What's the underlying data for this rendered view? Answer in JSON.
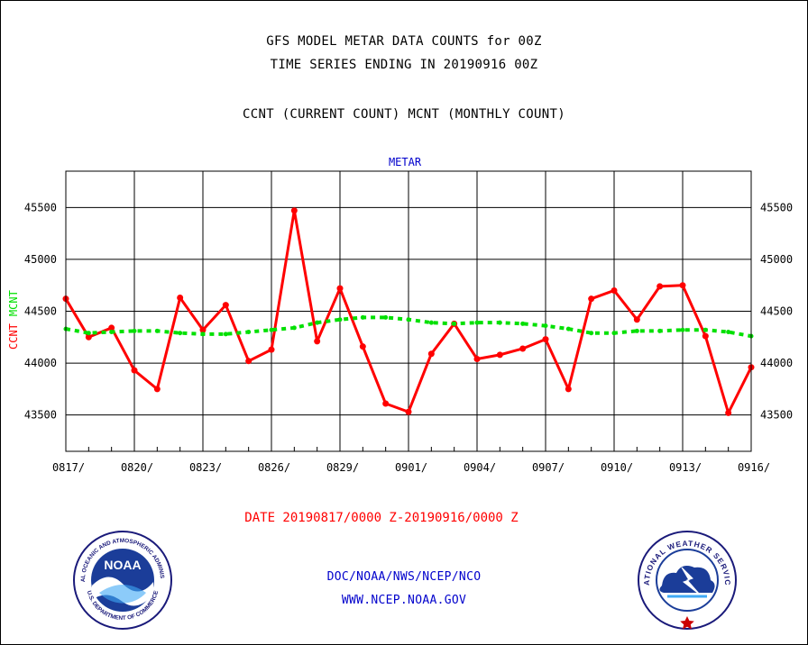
{
  "header": {
    "line1": "GFS MODEL METAR DATA COUNTS for 00Z",
    "line2": "TIME SERIES ENDING IN 20190916 00Z",
    "line3": "CCNT (CURRENT COUNT) MCNT (MONTHLY COUNT)"
  },
  "chart_data": {
    "type": "line",
    "title": "METAR",
    "ylabel_primary": "CCNT",
    "ylabel_secondary": "MCNT",
    "xlabel": "DATE 20190817/0000 Z-20190916/0000 Z",
    "ylim": [
      43150,
      45850
    ],
    "yticks": [
      43500,
      44000,
      44500,
      45000,
      45500
    ],
    "ytick_labels": [
      "43500",
      "44000",
      "44500",
      "45000",
      "45500"
    ],
    "xtick_labels": [
      "0817/",
      "0820/",
      "0823/",
      "0826/",
      "0829/",
      "0901/",
      "0904/",
      "0907/",
      "0910/",
      "0913/",
      "0916/"
    ],
    "x": [
      "0817",
      "0818",
      "0819",
      "0820",
      "0821",
      "0822",
      "0823",
      "0824",
      "0825",
      "0826",
      "0827",
      "0828",
      "0829",
      "0830",
      "0831",
      "0901",
      "0902",
      "0903",
      "0904",
      "0905",
      "0906",
      "0907",
      "0908",
      "0909",
      "0910",
      "0911",
      "0912",
      "0913",
      "0914",
      "0915",
      "0916"
    ],
    "grid": true,
    "series": [
      {
        "name": "CCNT",
        "color": "#ff0000",
        "style": "solid",
        "values": [
          44620,
          44250,
          44340,
          43930,
          43750,
          44630,
          44320,
          44560,
          44020,
          44130,
          45470,
          44210,
          44720,
          44160,
          43610,
          43530,
          44090,
          44380,
          44040,
          44080,
          44140,
          44230,
          43750,
          44620,
          44700,
          44420,
          44740,
          44750,
          44260,
          43520,
          43960
        ]
      },
      {
        "name": "MCNT",
        "color": "#00e000",
        "style": "dashed",
        "values": [
          44330,
          44290,
          44300,
          44310,
          44310,
          44290,
          44280,
          44280,
          44300,
          44320,
          44340,
          44390,
          44420,
          44440,
          44440,
          44420,
          44390,
          44380,
          44390,
          44390,
          44380,
          44360,
          44330,
          44290,
          44290,
          44310,
          44310,
          44320,
          44320,
          44300,
          44260
        ]
      }
    ]
  },
  "footer": {
    "org": "DOC/NOAA/NWS/NCEP/NCO",
    "url": "WWW.NCEP.NOAA.GOV",
    "noaa_logo_text": "NOAA",
    "noaa_ring_top": "NATIONAL OCEANIC AND ATMOSPHERIC ADMINISTRATION",
    "noaa_ring_bottom": "U.S. DEPARTMENT OF COMMERCE",
    "nws_ring_text": "NATIONAL WEATHER SERVICE"
  },
  "colors": {
    "ccnt": "#ff0000",
    "mcnt": "#00e000",
    "axis": "#000000",
    "title_blue": "#0000cc",
    "xlabel_red": "#ff0000",
    "footer_blue": "#0000cc"
  }
}
